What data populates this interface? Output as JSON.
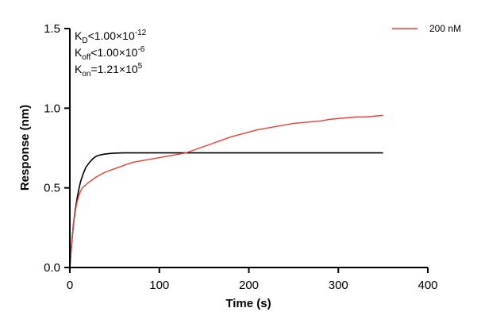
{
  "chart_data": {
    "type": "line",
    "xlabel": "Time (s)",
    "ylabel": "Response (nm)",
    "xlim": [
      0,
      400
    ],
    "ylim": [
      0,
      1.5
    ],
    "x_ticks": [
      0,
      100,
      200,
      300,
      400
    ],
    "x_tick_labels": [
      "0",
      "100",
      "200",
      "300",
      "400"
    ],
    "y_ticks": [
      0,
      0.5,
      1.0,
      1.5
    ],
    "y_tick_labels": [
      "0.0",
      "0.5",
      "1.0",
      "1.5"
    ],
    "grid": false,
    "legend_position": "top-right",
    "annotations": [
      {
        "main": "K",
        "sub": "D",
        "rel": "<",
        "value": "1.00×10",
        "exp": "-12"
      },
      {
        "main": "K",
        "sub": "off",
        "rel": "<",
        "value": "1.00×10",
        "exp": "-6"
      },
      {
        "main": "K",
        "sub": "on",
        "rel": "=",
        "value": "1.21×10",
        "exp": "5"
      }
    ],
    "series": [
      {
        "name": "200 nM",
        "color": "#e8413c",
        "role": "measured",
        "x": [
          0,
          2,
          4,
          6,
          8,
          10,
          12,
          14,
          16,
          18,
          20,
          25,
          30,
          40,
          50,
          60,
          70,
          80,
          90,
          100,
          110,
          120,
          130,
          140,
          150,
          160,
          170,
          180,
          190,
          200,
          210,
          220,
          230,
          240,
          250,
          260,
          270,
          280,
          290,
          300,
          310,
          320,
          330,
          340,
          350
        ],
        "y": [
          0.0,
          0.15,
          0.27,
          0.35,
          0.41,
          0.45,
          0.48,
          0.5,
          0.51,
          0.52,
          0.53,
          0.55,
          0.57,
          0.6,
          0.62,
          0.64,
          0.66,
          0.67,
          0.68,
          0.69,
          0.7,
          0.71,
          0.72,
          0.74,
          0.76,
          0.78,
          0.8,
          0.82,
          0.835,
          0.85,
          0.865,
          0.875,
          0.885,
          0.895,
          0.905,
          0.91,
          0.915,
          0.92,
          0.93,
          0.935,
          0.94,
          0.945,
          0.945,
          0.95,
          0.955
        ]
      },
      {
        "color": "#000000",
        "role": "fit",
        "x": [
          0,
          2,
          4,
          6,
          8,
          10,
          12,
          15,
          18,
          22,
          26,
          30,
          35,
          40,
          45,
          50,
          60,
          70,
          80,
          100,
          150,
          200,
          250,
          300,
          350
        ],
        "y": [
          0.0,
          0.15,
          0.27,
          0.36,
          0.43,
          0.49,
          0.54,
          0.59,
          0.63,
          0.66,
          0.685,
          0.7,
          0.708,
          0.713,
          0.716,
          0.718,
          0.72,
          0.72,
          0.72,
          0.72,
          0.72,
          0.72,
          0.72,
          0.72,
          0.72
        ]
      }
    ]
  }
}
